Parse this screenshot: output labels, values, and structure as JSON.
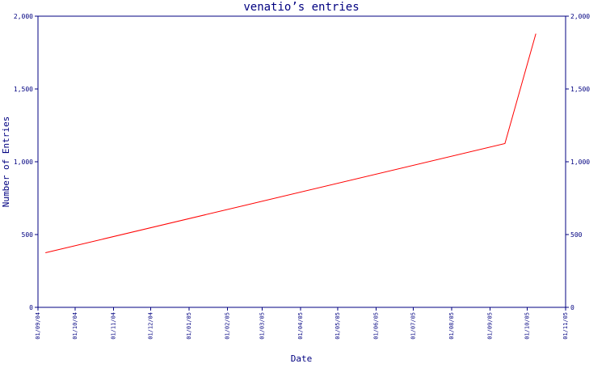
{
  "chart_data": {
    "type": "line",
    "title": "venatio’s entries",
    "xlabel": "Date",
    "ylabel": "Number of Entries",
    "ylim": [
      0,
      2000
    ],
    "yticks": [
      0,
      500,
      1000,
      1500,
      2000
    ],
    "ytick_labels": [
      "0",
      "500",
      "1,000",
      "1,500",
      "2,000"
    ],
    "xlim": [
      "2004-09-01",
      "2005-11-01"
    ],
    "xticks": [
      "2004-09-01",
      "2004-10-01",
      "2004-11-01",
      "2004-12-01",
      "2005-01-01",
      "2005-02-01",
      "2005-03-01",
      "2005-04-01",
      "2005-05-01",
      "2005-06-01",
      "2005-07-01",
      "2005-08-01",
      "2005-09-01",
      "2005-10-01",
      "2005-11-01"
    ],
    "xtick_labels": [
      "01/09/04",
      "01/10/04",
      "01/11/04",
      "01/12/04",
      "01/01/05",
      "01/02/05",
      "01/03/05",
      "01/04/05",
      "01/05/05",
      "01/06/05",
      "01/07/05",
      "01/08/05",
      "01/09/05",
      "01/10/05",
      "01/11/05"
    ],
    "grid": false,
    "series": [
      {
        "x": [
          "2004-09-07",
          "2005-09-13",
          "2005-10-08"
        ],
        "y": [
          375,
          1125,
          1880
        ],
        "color": "#ff0000"
      }
    ],
    "colors": {
      "axis": "#000080",
      "line": "#ff0000",
      "background": "#ffffff"
    }
  }
}
